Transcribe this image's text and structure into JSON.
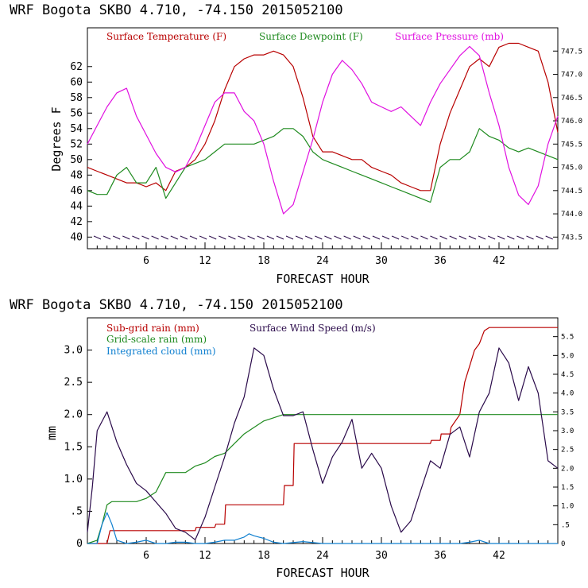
{
  "top_title": "WRF   Bogota SKBO    4.710, -74.150  2015052100",
  "bottom_title": "WRF   Bogota SKBO    4.710, -74.150  2015052100",
  "colors": {
    "temp": "#b80000",
    "dew": "#1e8a1e",
    "pressure": "#e010e0",
    "wind": "#2a0a4a",
    "cloud": "#1080d0",
    "barb": "#2a0a4a"
  },
  "chart_data": [
    {
      "type": "line",
      "title": "WRF   Bogota SKBO    4.710, -74.150  2015052100",
      "xlabel": "FORECAST HOUR",
      "ylabel": "Degrees F",
      "xlim": [
        0,
        48
      ],
      "ylim": [
        38.5,
        67
      ],
      "y2lim": [
        743.25,
        748.0
      ],
      "xticks": [
        "6",
        "12",
        "18",
        "24",
        "30",
        "36",
        "42"
      ],
      "yticks": [
        "40",
        "42",
        "44",
        "46",
        "48",
        "50",
        "52",
        "54",
        "56",
        "58",
        "60",
        "62"
      ],
      "y2ticks": [
        "743.5",
        "744.0",
        "744.5",
        "745.0",
        "745.5",
        "746.0",
        "746.5",
        "747.0",
        "747.5"
      ],
      "legend": [
        "Surface Temperature (F)",
        "Surface Dewpoint (F)",
        "Surface Pressure (mb)"
      ],
      "series": [
        {
          "name": "Surface Temperature (F)",
          "axis": "left",
          "x": [
            0,
            1,
            2,
            3,
            4,
            5,
            6,
            7,
            8,
            9,
            10,
            11,
            12,
            13,
            14,
            15,
            16,
            17,
            18,
            19,
            20,
            21,
            22,
            23,
            24,
            25,
            26,
            27,
            28,
            29,
            30,
            31,
            32,
            33,
            34,
            35,
            36,
            37,
            38,
            39,
            40,
            41,
            42,
            43,
            44,
            45,
            46,
            47,
            48
          ],
          "values": [
            49,
            48.5,
            48,
            47.5,
            47,
            47,
            46.5,
            47,
            46,
            48.5,
            49,
            50,
            52,
            55,
            59,
            62,
            63,
            63.5,
            63.5,
            64,
            63.5,
            62,
            58,
            53,
            51,
            51,
            50.5,
            50,
            50,
            49,
            48.5,
            48,
            47,
            46.5,
            46,
            46,
            52,
            56,
            59,
            62,
            63,
            62,
            64.5,
            65,
            65,
            64.5,
            64,
            60,
            53.5
          ]
        },
        {
          "name": "Surface Dewpoint (F)",
          "axis": "left",
          "x": [
            0,
            1,
            2,
            3,
            4,
            5,
            6,
            7,
            8,
            9,
            10,
            11,
            12,
            13,
            14,
            15,
            16,
            17,
            18,
            19,
            20,
            21,
            22,
            23,
            24,
            25,
            26,
            27,
            28,
            29,
            30,
            31,
            32,
            33,
            34,
            35,
            36,
            37,
            38,
            39,
            40,
            41,
            42,
            43,
            44,
            45,
            46,
            47,
            48
          ],
          "values": [
            46,
            45.5,
            45.5,
            48,
            49,
            47,
            47,
            49,
            45,
            47,
            49,
            49.5,
            50,
            51,
            52,
            52,
            52,
            52,
            52.5,
            53,
            54,
            54,
            53,
            51,
            50,
            49.5,
            49,
            48.5,
            48,
            47.5,
            47,
            46.5,
            46,
            45.5,
            45,
            44.5,
            49,
            50,
            50,
            51,
            54,
            53,
            52.5,
            51.5,
            51,
            51.5,
            51,
            50.5,
            50
          ]
        },
        {
          "name": "Surface Pressure (mb)",
          "axis": "right",
          "x": [
            0,
            1,
            2,
            3,
            4,
            5,
            6,
            7,
            8,
            9,
            10,
            11,
            12,
            13,
            14,
            15,
            16,
            17,
            18,
            19,
            20,
            21,
            22,
            23,
            24,
            25,
            26,
            27,
            28,
            29,
            30,
            31,
            32,
            33,
            34,
            35,
            36,
            37,
            38,
            39,
            40,
            41,
            42,
            43,
            44,
            45,
            46,
            47,
            48
          ],
          "values": [
            745.5,
            745.9,
            746.3,
            746.6,
            746.7,
            746.1,
            745.7,
            745.3,
            745.0,
            744.9,
            745.0,
            745.4,
            745.9,
            746.4,
            746.6,
            746.6,
            746.2,
            746.0,
            745.5,
            744.7,
            744.0,
            744.2,
            744.9,
            745.6,
            746.4,
            747.0,
            747.3,
            747.1,
            746.8,
            746.4,
            746.3,
            746.2,
            746.3,
            746.1,
            745.9,
            746.4,
            746.8,
            747.1,
            747.4,
            747.6,
            747.4,
            746.6,
            745.9,
            745.0,
            744.4,
            744.2,
            744.6,
            745.5,
            746.1
          ]
        }
      ]
    },
    {
      "type": "line",
      "title": "WRF   Bogota SKBO    4.710, -74.150  2015052100",
      "xlabel": "FORECAST HOUR",
      "ylabel": "mm",
      "xlim": [
        0,
        48
      ],
      "ylim": [
        0,
        3.5
      ],
      "y2lim": [
        0,
        6.0
      ],
      "xticks": [
        "6",
        "12",
        "18",
        "24",
        "30",
        "36",
        "42"
      ],
      "yticks": [
        "0",
        ".5",
        "1.0",
        "1.5",
        "2.0",
        "2.5",
        "3.0"
      ],
      "y2ticks": [
        "0",
        ".5",
        "1.0",
        "1.5",
        "2.0",
        "2.5",
        "3.0",
        "3.5",
        "4.0",
        "4.5",
        "5.0",
        "5.5"
      ],
      "legend": [
        "Sub-grid rain (mm)",
        "Surface Wind Speed (m/s)",
        "Grid-scale rain (mm)",
        "Integrated cloud (mm)"
      ],
      "series": [
        {
          "name": "Sub-grid rain (mm)",
          "axis": "left",
          "x": [
            0,
            1,
            2,
            2.3,
            11,
            11.1,
            13,
            13.1,
            14,
            14.1,
            20,
            20.1,
            21,
            21.1,
            35,
            35.1,
            36,
            36.1,
            37,
            37.1,
            38,
            38.5,
            39,
            39.5,
            40,
            40.5,
            41,
            42,
            48
          ],
          "values": [
            0,
            0,
            0,
            0.2,
            0.2,
            0.25,
            0.25,
            0.3,
            0.3,
            0.6,
            0.6,
            0.9,
            0.9,
            1.55,
            1.55,
            1.6,
            1.6,
            1.7,
            1.7,
            1.8,
            2.0,
            2.5,
            2.75,
            3.0,
            3.1,
            3.3,
            3.35,
            3.35,
            3.35
          ]
        },
        {
          "name": "Grid-scale rain (mm)",
          "axis": "left",
          "x": [
            0,
            1,
            1.5,
            2,
            2.5,
            5,
            6,
            7,
            8,
            10,
            11,
            12,
            13,
            14,
            15,
            16,
            17,
            18,
            19,
            20,
            48
          ],
          "values": [
            0,
            0.05,
            0.3,
            0.6,
            0.65,
            0.65,
            0.7,
            0.8,
            1.1,
            1.1,
            1.2,
            1.25,
            1.35,
            1.4,
            1.55,
            1.7,
            1.8,
            1.9,
            1.95,
            2.0,
            2.0
          ]
        },
        {
          "name": "Integrated cloud (mm)",
          "axis": "left",
          "x": [
            0,
            1,
            1.5,
            2,
            2.5,
            3,
            4,
            5,
            6,
            7,
            8,
            9,
            10,
            11,
            12,
            13,
            14,
            15,
            16,
            16.5,
            17,
            17.5,
            18,
            19,
            20,
            22,
            24,
            30,
            36,
            38,
            39,
            40,
            41,
            48
          ],
          "values": [
            0,
            0,
            0.3,
            0.48,
            0.3,
            0.05,
            0,
            0.02,
            0.05,
            0,
            0,
            0.02,
            0.02,
            0,
            0,
            0.02,
            0.05,
            0.05,
            0.1,
            0.15,
            0.12,
            0.1,
            0.08,
            0.02,
            0,
            0.03,
            0,
            0,
            0,
            0,
            0.02,
            0.05,
            0,
            0
          ]
        },
        {
          "name": "Surface Wind Speed (m/s)",
          "axis": "right",
          "x": [
            0,
            0.5,
            1,
            2,
            3,
            4,
            5,
            6,
            7,
            8,
            9,
            10,
            11,
            12,
            13,
            14,
            15,
            16,
            17,
            18,
            19,
            20,
            21,
            22,
            23,
            24,
            25,
            26,
            27,
            28,
            29,
            30,
            31,
            32,
            33,
            34,
            35,
            36,
            37,
            38,
            39,
            40,
            41,
            42,
            43,
            44,
            45,
            46,
            47,
            48
          ],
          "values": [
            0.3,
            1.5,
            3.0,
            3.5,
            2.7,
            2.1,
            1.6,
            1.4,
            1.1,
            0.8,
            0.4,
            0.3,
            0.1,
            0.7,
            1.5,
            2.3,
            3.2,
            3.9,
            5.2,
            5.0,
            4.1,
            3.4,
            3.4,
            3.5,
            2.5,
            1.6,
            2.3,
            2.7,
            3.3,
            2.0,
            2.4,
            2.0,
            1.0,
            0.3,
            0.6,
            1.4,
            2.2,
            2.0,
            2.9,
            3.1,
            2.3,
            3.5,
            4.0,
            5.2,
            4.8,
            3.8,
            4.7,
            4.0,
            2.2,
            2.0
          ]
        }
      ]
    }
  ]
}
